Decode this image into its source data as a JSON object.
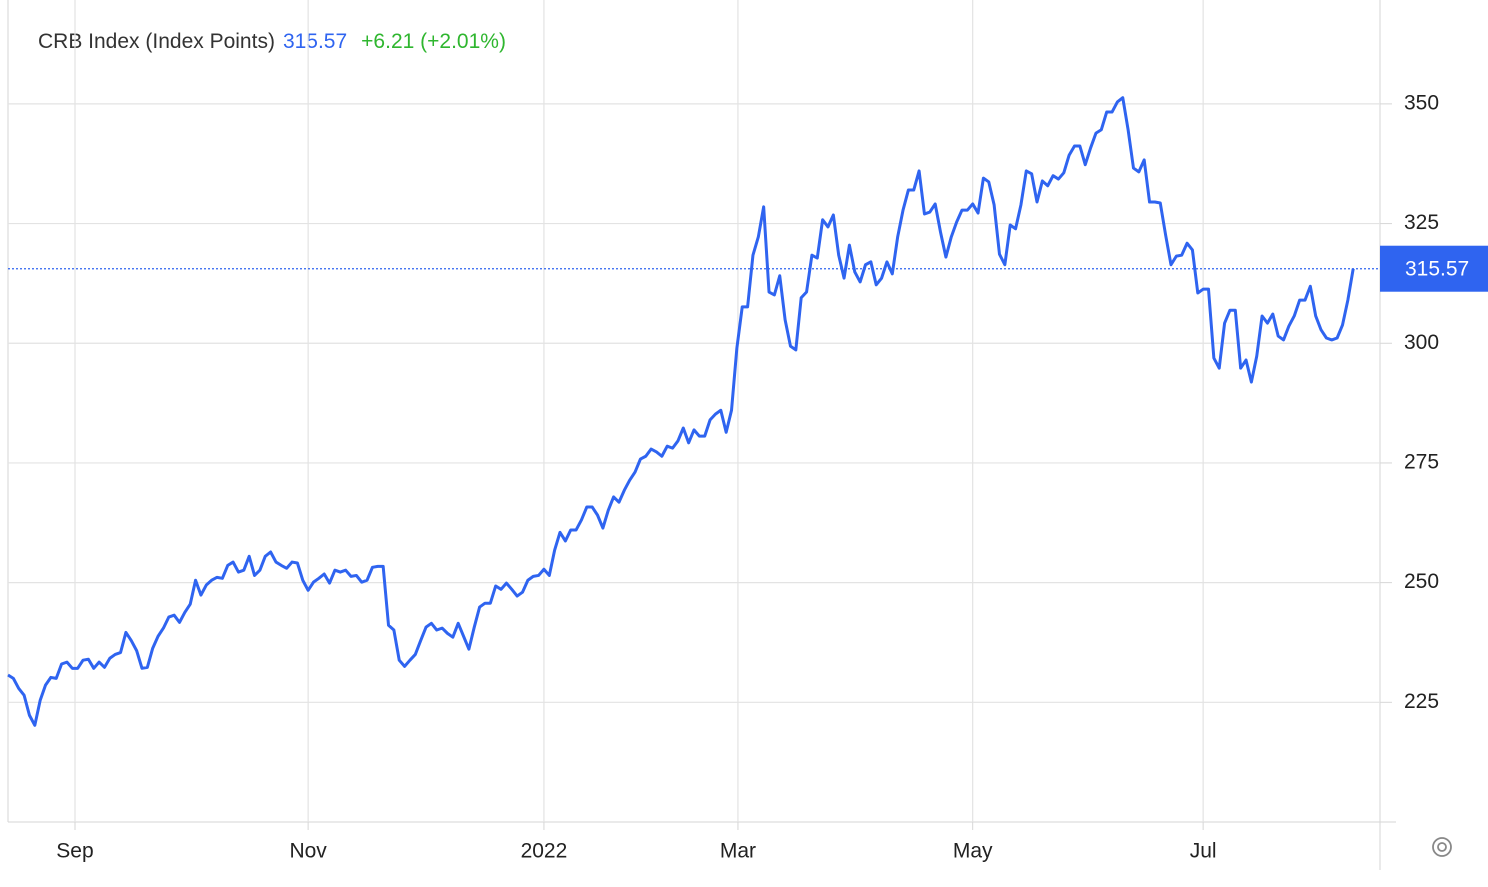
{
  "chart_data": {
    "type": "line",
    "title": "CRB Index (Index Points)",
    "change": "+6.21 (+2.01%)",
    "color": "#2f64f0",
    "values": [
      230.7,
      230.0,
      227.9,
      226.5,
      222.3,
      220.2,
      225.4,
      228.6,
      230.2,
      230.0,
      233.0,
      233.4,
      232.1,
      232.1,
      233.8,
      234.0,
      232.1,
      233.4,
      232.3,
      234.2,
      235.0,
      235.4,
      239.6,
      237.9,
      235.8,
      232.1,
      232.3,
      236.3,
      238.8,
      240.5,
      242.8,
      243.2,
      241.7,
      243.8,
      245.5,
      250.5,
      247.4,
      249.5,
      250.5,
      251.1,
      250.9,
      253.6,
      254.3,
      252.2,
      252.6,
      255.5,
      251.5,
      252.6,
      255.5,
      256.4,
      254.3,
      253.6,
      253.0,
      254.3,
      254.1,
      250.5,
      248.4,
      250.1,
      250.9,
      251.8,
      249.9,
      252.6,
      252.2,
      252.6,
      251.3,
      251.5,
      250.1,
      250.5,
      253.2,
      253.4,
      253.4,
      241.1,
      240.1,
      233.8,
      232.5,
      233.8,
      235.0,
      237.9,
      240.7,
      241.5,
      240.1,
      240.5,
      239.4,
      238.6,
      241.5,
      238.8,
      236.1,
      240.7,
      244.9,
      245.7,
      245.7,
      249.3,
      248.6,
      249.9,
      248.6,
      247.2,
      248.0,
      250.5,
      251.3,
      251.5,
      252.8,
      251.5,
      256.8,
      260.5,
      258.7,
      261.0,
      261.0,
      263.1,
      265.8,
      265.8,
      264.1,
      261.4,
      265.1,
      267.9,
      266.8,
      269.3,
      271.4,
      273.1,
      275.8,
      276.4,
      277.9,
      277.3,
      276.4,
      278.5,
      278.1,
      279.6,
      282.3,
      279.2,
      281.9,
      280.6,
      280.6,
      284.0,
      285.2,
      286.0,
      281.4,
      286.0,
      299.0,
      307.6,
      307.6,
      318.4,
      322.2,
      328.5,
      310.7,
      310.1,
      314.1,
      304.9,
      299.4,
      298.6,
      309.5,
      310.7,
      318.4,
      317.8,
      325.8,
      324.3,
      326.8,
      318.4,
      313.6,
      320.5,
      314.9,
      312.8,
      316.4,
      317.0,
      312.2,
      313.6,
      317.0,
      314.5,
      322.2,
      327.8,
      332.0,
      332.0,
      336.0,
      327.0,
      327.4,
      329.1,
      323.2,
      318.0,
      322.2,
      325.3,
      327.8,
      327.8,
      329.1,
      327.2,
      334.5,
      333.7,
      328.9,
      318.6,
      316.4,
      324.7,
      323.9,
      328.9,
      336.0,
      335.4,
      329.5,
      333.9,
      332.9,
      335.0,
      334.3,
      335.6,
      339.3,
      341.2,
      341.2,
      337.3,
      340.8,
      343.9,
      344.6,
      348.3,
      348.3,
      350.4,
      351.3,
      344.6,
      336.6,
      335.8,
      338.3,
      329.5,
      329.5,
      329.3,
      322.6,
      316.4,
      318.2,
      318.4,
      320.9,
      319.5,
      310.5,
      311.3,
      311.3,
      296.9,
      294.8,
      304.2,
      306.9,
      306.9,
      294.8,
      296.5,
      291.9,
      297.3,
      305.7,
      304.2,
      306.1,
      301.5,
      300.7,
      303.6,
      305.7,
      309.0,
      309.0,
      311.9,
      305.7,
      302.8,
      301.1,
      300.7,
      301.1,
      303.8,
      309.0,
      315.57
    ],
    "xlim": [
      0,
      256
    ],
    "xticks": [
      {
        "value": 12.5,
        "label": "Sep"
      },
      {
        "value": 56,
        "label": "Nov"
      },
      {
        "value": 100,
        "label": "2022"
      },
      {
        "value": 136.2,
        "label": "Mar"
      },
      {
        "value": 180,
        "label": "May"
      },
      {
        "value": 223,
        "label": "Jul"
      }
    ],
    "ylim": [
      200,
      371.7
    ],
    "yticks": [
      225,
      250,
      275,
      300,
      325,
      350
    ],
    "grid": true
  }
}
